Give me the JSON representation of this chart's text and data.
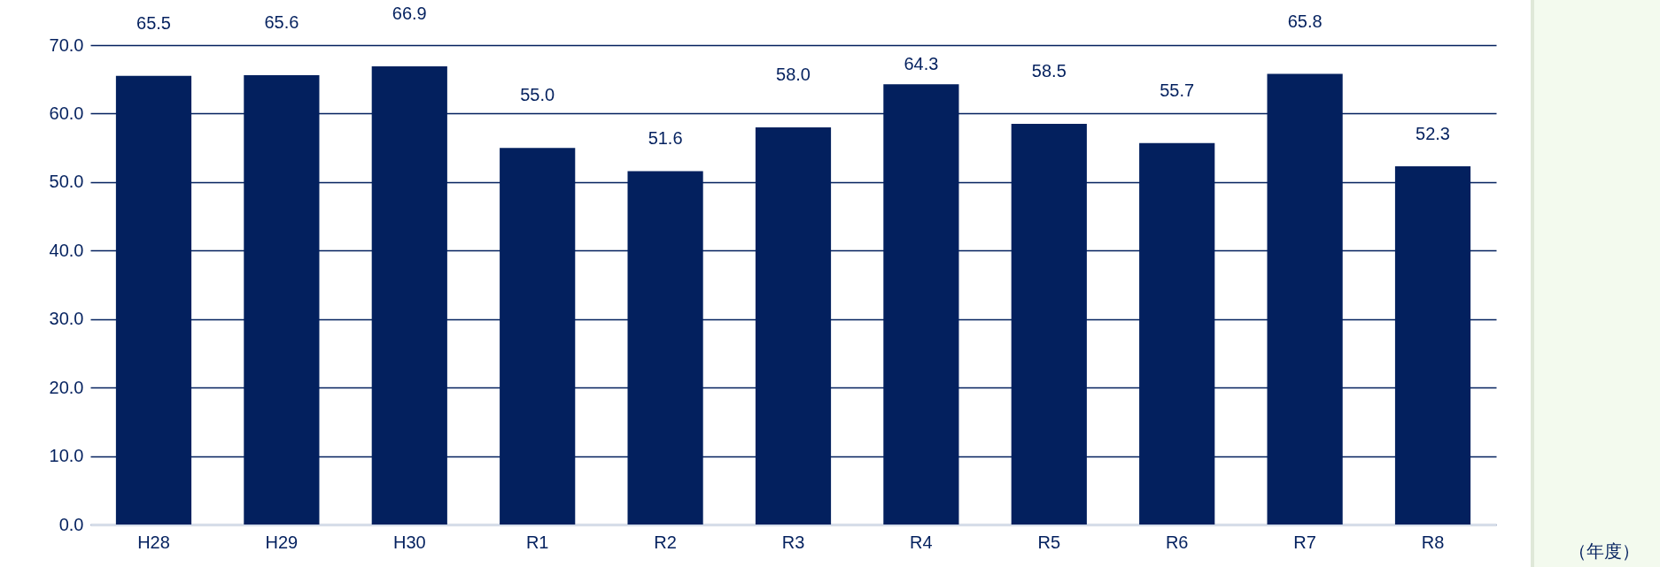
{
  "chart_data": {
    "type": "bar",
    "xlabel": "（年度）",
    "categories": [
      "H28",
      "H29",
      "H30",
      "R1",
      "R2",
      "R3",
      "R4",
      "R5",
      "R6",
      "R7",
      "R8"
    ],
    "values": [
      65.5,
      65.6,
      66.9,
      55.0,
      51.6,
      58.0,
      64.3,
      58.5,
      55.7,
      65.8,
      52.3
    ],
    "value_labels": [
      "65.5",
      "65.6",
      "66.9",
      "55.0",
      "51.6",
      "58.0",
      "64.3",
      "58.5",
      "55.7",
      "65.8",
      "52.3"
    ],
    "color": "#03205e",
    "ylim": [
      0,
      70
    ],
    "yticks": [
      {
        "value": 0,
        "label": "0.0"
      },
      {
        "value": 10,
        "label": "10.0"
      },
      {
        "value": 20,
        "label": "20.0"
      },
      {
        "value": 30,
        "label": "30.0"
      },
      {
        "value": 40,
        "label": "40.0"
      },
      {
        "value": 50,
        "label": "50.0"
      },
      {
        "value": 60,
        "label": "60.0"
      },
      {
        "value": 70,
        "label": "70.0"
      }
    ],
    "grid": "y"
  }
}
